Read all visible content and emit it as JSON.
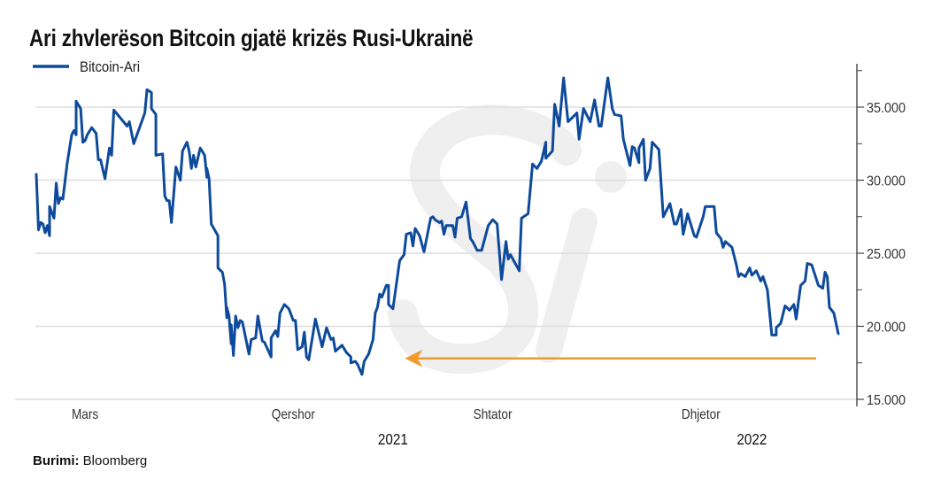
{
  "title": "Ari zhvlerëson Bitcoin gjatë krizës Rusi-Ukrainë",
  "source": {
    "label": "Burimi:",
    "value": "Bloomberg"
  },
  "watermark": "Si",
  "colors": {
    "line": "#0d4a9c",
    "arrow": "#f29a2e",
    "grid": "#dddddd",
    "axis": "#444444",
    "watermark": "#efefef"
  },
  "chart_data": {
    "type": "line",
    "title": "Ari zhvlerëson Bitcoin gjatë krizës Rusi-Ukrainë",
    "xlabel": "",
    "ylabel": "",
    "x_unit": "days since start of series",
    "xlim": [
      0,
      362
    ],
    "ylim": [
      15000,
      37900
    ],
    "grid": true,
    "legend": {
      "placement": "top-left",
      "entries": [
        "Bitcoin-Ari"
      ]
    },
    "y_ticks": [
      {
        "value": 15000,
        "label": "15.000"
      },
      {
        "value": 20000,
        "label": "20.000"
      },
      {
        "value": 25000,
        "label": "25.000"
      },
      {
        "value": 30000,
        "label": "30.000"
      },
      {
        "value": 35000,
        "label": "35.000"
      }
    ],
    "x_ticks": [
      {
        "x": 22,
        "label": "Mars"
      },
      {
        "x": 116,
        "label": "Qershor"
      },
      {
        "x": 206,
        "label": "Shtator"
      },
      {
        "x": 300,
        "label": "Dhjetor"
      }
    ],
    "x_years": [
      {
        "x": 161,
        "label": "2021"
      },
      {
        "x": 323,
        "label": "2022"
      }
    ],
    "annotation": {
      "type": "arrow",
      "from_x": 352,
      "to_x": 168,
      "y": 17800
    },
    "series": [
      {
        "name": "Bitcoin-Ari",
        "points": [
          [
            0,
            30400
          ],
          [
            1,
            26600
          ],
          [
            2,
            27100
          ],
          [
            3,
            27000
          ],
          [
            4,
            26400
          ],
          [
            5,
            26900
          ],
          [
            6,
            26200
          ],
          [
            6,
            28200
          ],
          [
            8,
            27400
          ],
          [
            9,
            29800
          ],
          [
            10,
            28400
          ],
          [
            11,
            28800
          ],
          [
            12,
            28700
          ],
          [
            14,
            31200
          ],
          [
            16,
            33100
          ],
          [
            17,
            33400
          ],
          [
            18,
            33100
          ],
          [
            18,
            35400
          ],
          [
            20,
            34900
          ],
          [
            21,
            32600
          ],
          [
            22,
            32700
          ],
          [
            23,
            33100
          ],
          [
            25,
            33600
          ],
          [
            27,
            33200
          ],
          [
            28,
            31400
          ],
          [
            29,
            31400
          ],
          [
            31,
            30100
          ],
          [
            33,
            32200
          ],
          [
            34,
            31700
          ],
          [
            35,
            34800
          ],
          [
            41,
            33700
          ],
          [
            42,
            34000
          ],
          [
            44,
            32500
          ],
          [
            49,
            34600
          ],
          [
            50,
            36200
          ],
          [
            52,
            36000
          ],
          [
            52,
            34900
          ],
          [
            54,
            34500
          ],
          [
            54,
            31700
          ],
          [
            57,
            31800
          ],
          [
            58,
            28900
          ],
          [
            59,
            28600
          ],
          [
            60,
            28600
          ],
          [
            61,
            27100
          ],
          [
            63,
            30900
          ],
          [
            65,
            30000
          ],
          [
            66,
            32000
          ],
          [
            68,
            32600
          ],
          [
            69,
            32000
          ],
          [
            70,
            30800
          ],
          [
            71,
            31700
          ],
          [
            72,
            30900
          ],
          [
            74,
            32200
          ],
          [
            76,
            31700
          ],
          [
            77,
            30200
          ],
          [
            77,
            30800
          ],
          [
            78,
            30100
          ],
          [
            79,
            27000
          ],
          [
            82,
            26200
          ],
          [
            82,
            24000
          ],
          [
            84,
            23700
          ],
          [
            85,
            22900
          ],
          [
            86,
            20600
          ],
          [
            86,
            21300
          ],
          [
            87,
            20700
          ],
          [
            88,
            18800
          ],
          [
            88,
            20100
          ],
          [
            89,
            18000
          ],
          [
            90,
            20700
          ],
          [
            91,
            19900
          ],
          [
            92,
            20400
          ],
          [
            93,
            20300
          ],
          [
            96,
            18100
          ],
          [
            97,
            19100
          ],
          [
            99,
            19200
          ],
          [
            100,
            20700
          ],
          [
            102,
            19000
          ],
          [
            103,
            18900
          ],
          [
            106,
            17900
          ],
          [
            106,
            19200
          ],
          [
            108,
            19700
          ],
          [
            109,
            19300
          ],
          [
            110,
            20900
          ],
          [
            112,
            21500
          ],
          [
            114,
            21200
          ],
          [
            116,
            20400
          ],
          [
            117,
            20400
          ],
          [
            118,
            18400
          ],
          [
            120,
            18600
          ],
          [
            121,
            19600
          ],
          [
            122,
            17900
          ],
          [
            123,
            17700
          ],
          [
            126,
            20500
          ],
          [
            129,
            18600
          ],
          [
            131,
            19900
          ],
          [
            133,
            19100
          ],
          [
            134,
            19200
          ],
          [
            135,
            18300
          ],
          [
            138,
            18700
          ],
          [
            140,
            18200
          ],
          [
            142,
            17900
          ],
          [
            142,
            17500
          ],
          [
            144,
            17600
          ],
          [
            145,
            17400
          ],
          [
            147,
            16700
          ],
          [
            148,
            17600
          ],
          [
            150,
            18100
          ],
          [
            152,
            19100
          ],
          [
            153,
            20900
          ],
          [
            154,
            21300
          ],
          [
            155,
            22200
          ],
          [
            156,
            22000
          ],
          [
            158,
            22800
          ],
          [
            159,
            22800
          ],
          [
            159,
            21500
          ],
          [
            161,
            21200
          ],
          [
            164,
            24500
          ],
          [
            166,
            24900
          ],
          [
            167,
            26300
          ],
          [
            169,
            26400
          ],
          [
            170,
            25500
          ],
          [
            171,
            26700
          ],
          [
            173,
            26200
          ],
          [
            175,
            25100
          ],
          [
            178,
            27400
          ],
          [
            179,
            27500
          ],
          [
            180,
            27300
          ],
          [
            182,
            27100
          ],
          [
            183,
            27200
          ],
          [
            184,
            26300
          ],
          [
            185,
            26900
          ],
          [
            188,
            26900
          ],
          [
            189,
            26100
          ],
          [
            190,
            27400
          ],
          [
            192,
            27500
          ],
          [
            194,
            28500
          ],
          [
            196,
            26000
          ],
          [
            197,
            25800
          ],
          [
            199,
            25200
          ],
          [
            201,
            25200
          ],
          [
            204,
            26900
          ],
          [
            206,
            27300
          ],
          [
            208,
            27000
          ],
          [
            210,
            23200
          ],
          [
            212,
            25800
          ],
          [
            213,
            24600
          ],
          [
            214,
            24900
          ],
          [
            218,
            23800
          ],
          [
            219,
            27400
          ],
          [
            222,
            27700
          ],
          [
            224,
            31100
          ],
          [
            226,
            30800
          ],
          [
            228,
            31300
          ],
          [
            230,
            32600
          ],
          [
            230,
            31500
          ],
          [
            233,
            32000
          ],
          [
            234,
            35200
          ],
          [
            236,
            33700
          ],
          [
            238,
            37000
          ],
          [
            240,
            34000
          ],
          [
            242,
            34300
          ],
          [
            244,
            34600
          ],
          [
            245,
            32800
          ],
          [
            247,
            34900
          ],
          [
            250,
            34000
          ],
          [
            252,
            35500
          ],
          [
            254,
            33700
          ],
          [
            255,
            33700
          ],
          [
            258,
            37000
          ],
          [
            260,
            34900
          ],
          [
            261,
            34500
          ],
          [
            264,
            34400
          ],
          [
            265,
            32800
          ],
          [
            268,
            31000
          ],
          [
            269,
            32300
          ],
          [
            270,
            32200
          ],
          [
            272,
            31200
          ],
          [
            272,
            32200
          ],
          [
            274,
            32800
          ],
          [
            275,
            30000
          ],
          [
            277,
            30800
          ],
          [
            278,
            32600
          ],
          [
            281,
            32100
          ],
          [
            283,
            27500
          ],
          [
            286,
            28400
          ],
          [
            288,
            27000
          ],
          [
            289,
            27000
          ],
          [
            291,
            28000
          ],
          [
            292,
            26300
          ],
          [
            294,
            27700
          ],
          [
            297,
            26200
          ],
          [
            298,
            26100
          ],
          [
            301,
            27500
          ],
          [
            302,
            28200
          ],
          [
            306,
            28200
          ],
          [
            307,
            26400
          ],
          [
            309,
            26000
          ],
          [
            310,
            25400
          ],
          [
            311,
            25800
          ],
          [
            314,
            25400
          ],
          [
            316,
            24200
          ],
          [
            317,
            23400
          ],
          [
            318,
            23600
          ],
          [
            320,
            23400
          ],
          [
            322,
            24000
          ],
          [
            323,
            23500
          ],
          [
            325,
            23800
          ],
          [
            327,
            23100
          ],
          [
            328,
            23400
          ],
          [
            330,
            22500
          ],
          [
            332,
            19400
          ],
          [
            334,
            19400
          ],
          [
            334,
            19900
          ],
          [
            336,
            20200
          ],
          [
            338,
            21400
          ],
          [
            340,
            21100
          ],
          [
            342,
            21500
          ],
          [
            343,
            20500
          ],
          [
            345,
            22800
          ],
          [
            347,
            23100
          ],
          [
            348,
            24300
          ],
          [
            350,
            24200
          ],
          [
            353,
            22800
          ],
          [
            355,
            22600
          ],
          [
            356,
            23700
          ],
          [
            357,
            23400
          ],
          [
            358,
            21300
          ],
          [
            360,
            20900
          ],
          [
            362,
            19500
          ]
        ]
      }
    ]
  }
}
